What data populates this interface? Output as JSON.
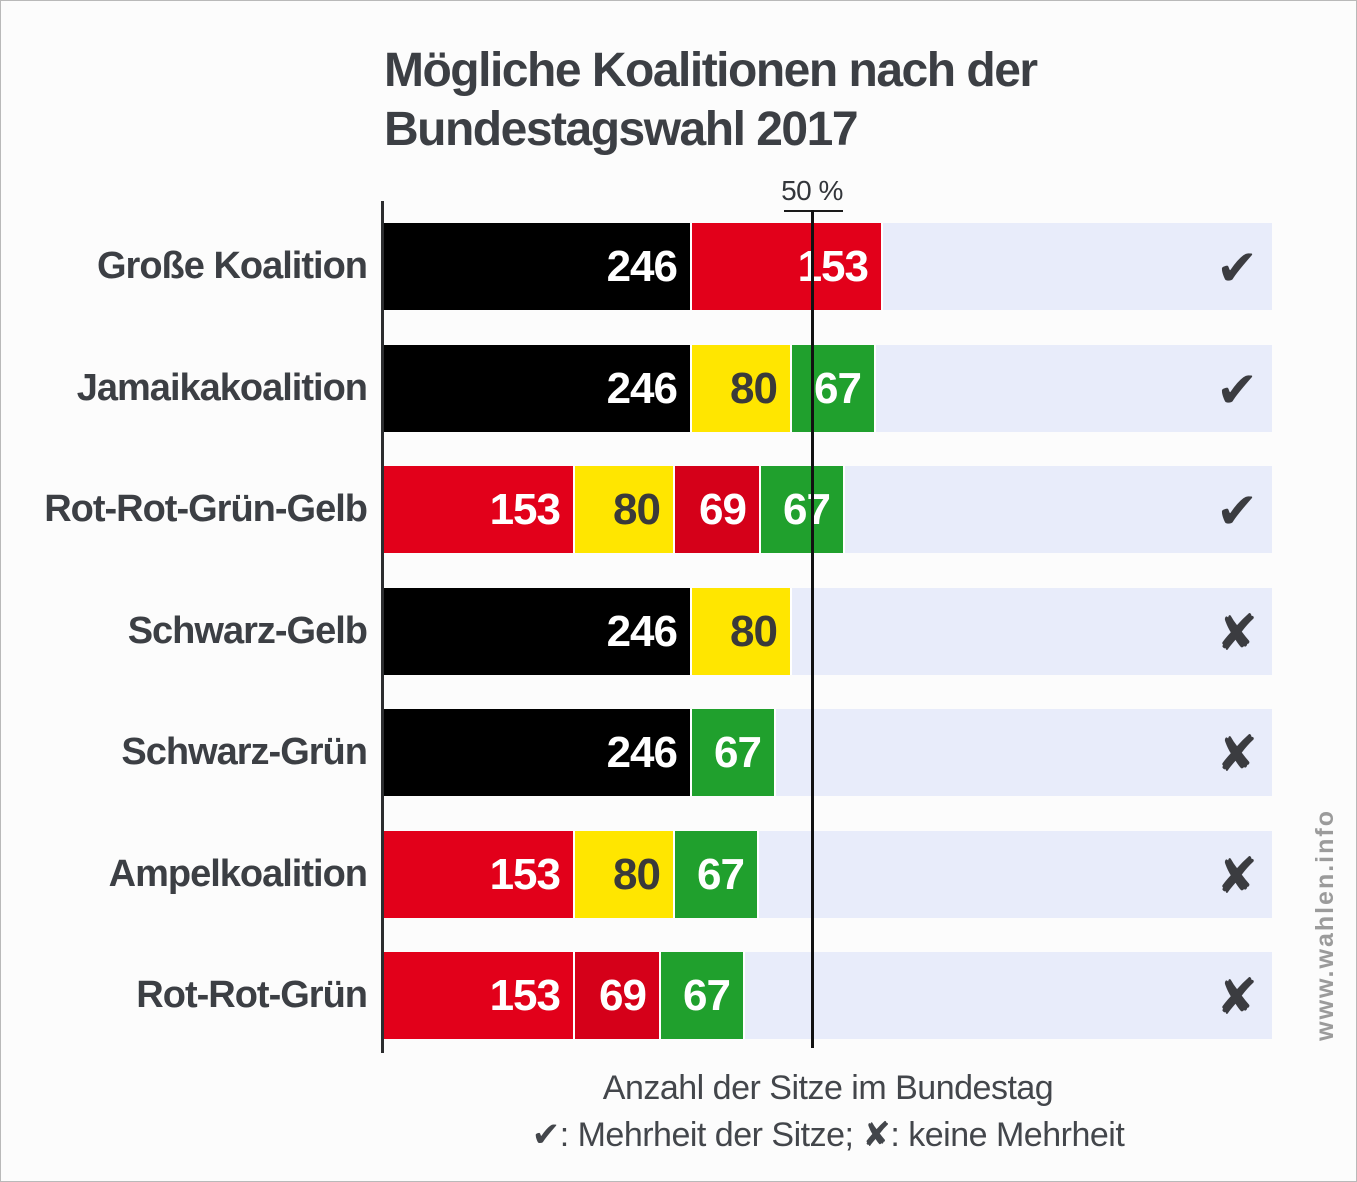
{
  "title": {
    "line1": "Mögliche Koalitionen nach der",
    "line2": "Bundestagswahl 2017"
  },
  "axis": {
    "gridline_label": "50 %"
  },
  "captions": {
    "xlabel": "Anzahl der Sitze im Bundestag",
    "legend": "✔: Mehrheit der Sitze; ✘: keine Mehrheit"
  },
  "watermark": "www.wahlen.info",
  "colors": {
    "black": "#000000",
    "red": "#e2001a",
    "dark_red": "#d50019",
    "yellow": "#ffe600",
    "green": "#20a02d",
    "track": "#e8ecfa",
    "ink": "#3c3f44",
    "mark": "#3b3c40",
    "gridline": "#111111",
    "watermark": "#9b9b9b"
  },
  "chart_data": {
    "type": "bar",
    "orientation": "horizontal",
    "stacked": true,
    "title": "Mögliche Koalitionen nach der Bundestagswahl 2017",
    "xlabel": "Anzahl der Sitze im Bundestag",
    "note": "✔: Mehrheit der Sitze; ✘: keine Mehrheit",
    "total_seats": 709,
    "majority_line": {
      "label": "50 %",
      "percent": 50
    },
    "legend_position": "bottom",
    "grid": "single-50%-line",
    "rows": [
      {
        "label": "Große Koalition",
        "majority": true,
        "mark": "✔",
        "segments": [
          {
            "value": 246,
            "color": "black"
          },
          {
            "value": 153,
            "color": "red"
          }
        ]
      },
      {
        "label": "Jamaikakoalition",
        "majority": true,
        "mark": "✔",
        "segments": [
          {
            "value": 246,
            "color": "black"
          },
          {
            "value": 80,
            "color": "yellow"
          },
          {
            "value": 67,
            "color": "green"
          }
        ]
      },
      {
        "label": "Rot-Rot-Grün-Gelb",
        "majority": true,
        "mark": "✔",
        "segments": [
          {
            "value": 153,
            "color": "red"
          },
          {
            "value": 80,
            "color": "yellow"
          },
          {
            "value": 69,
            "color": "dark_red"
          },
          {
            "value": 67,
            "color": "green"
          }
        ]
      },
      {
        "label": "Schwarz-Gelb",
        "majority": false,
        "mark": "✘",
        "segments": [
          {
            "value": 246,
            "color": "black"
          },
          {
            "value": 80,
            "color": "yellow"
          }
        ]
      },
      {
        "label": "Schwarz-Grün",
        "majority": false,
        "mark": "✘",
        "segments": [
          {
            "value": 246,
            "color": "black"
          },
          {
            "value": 67,
            "color": "green"
          }
        ]
      },
      {
        "label": "Ampelkoalition",
        "majority": false,
        "mark": "✘",
        "segments": [
          {
            "value": 153,
            "color": "red"
          },
          {
            "value": 80,
            "color": "yellow"
          },
          {
            "value": 67,
            "color": "green"
          }
        ]
      },
      {
        "label": "Rot-Rot-Grün",
        "majority": false,
        "mark": "✘",
        "segments": [
          {
            "value": 153,
            "color": "red"
          },
          {
            "value": 69,
            "color": "dark_red"
          },
          {
            "value": 67,
            "color": "green"
          }
        ]
      }
    ]
  }
}
